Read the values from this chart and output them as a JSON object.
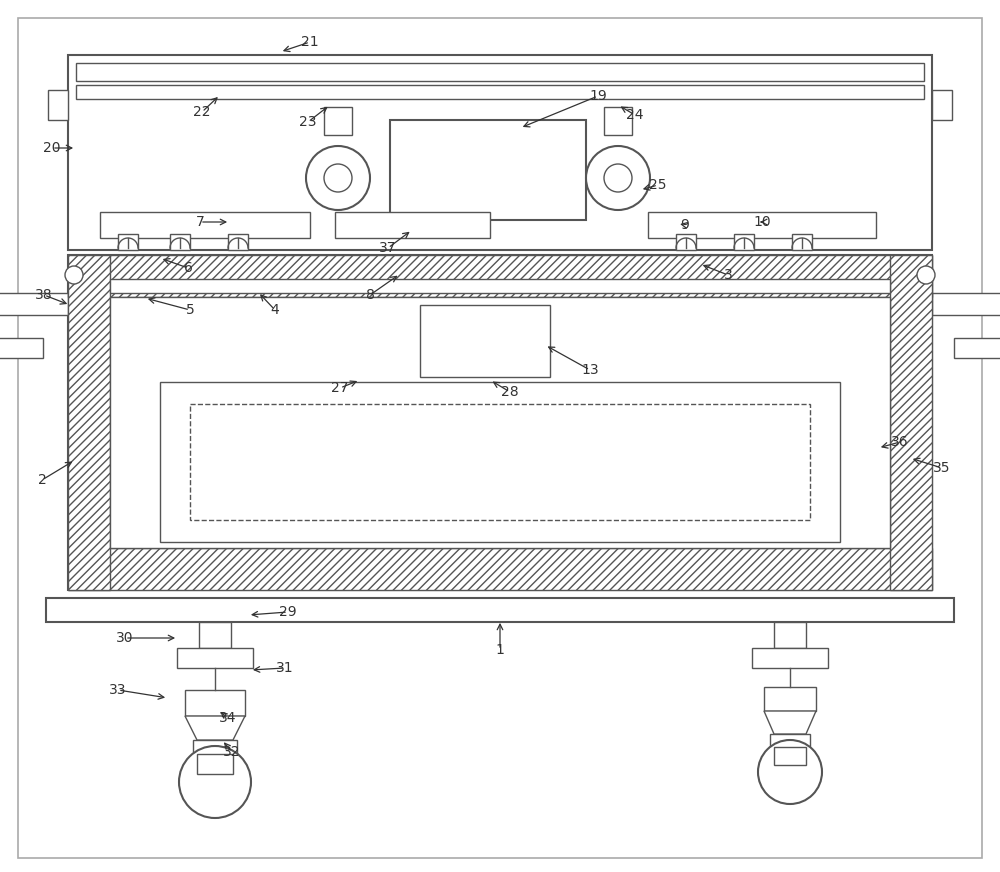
{
  "bg_color": "#ffffff",
  "lc": "#555555",
  "lw": 1.0,
  "lw2": 1.5,
  "ann_fs": 10,
  "ann_color": "#333333",
  "fig_width": 10.0,
  "fig_height": 8.72
}
